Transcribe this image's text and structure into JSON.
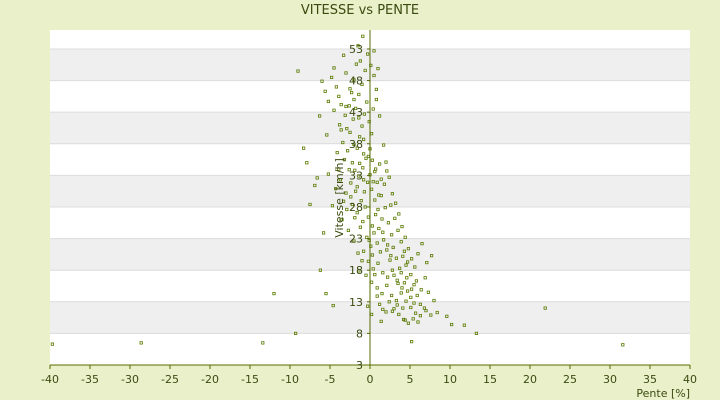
{
  "colors": {
    "page_background": "#eaf0c9",
    "band_white": "#ffffff",
    "band_gray": "#efefef",
    "axis": "#556b00",
    "point": "#5a7a00",
    "text": "#3a4a10"
  },
  "chart_data": {
    "type": "scatter",
    "title": "VITESSE vs PENTE",
    "xlabel": "Pente [%]",
    "ylabel": "Vitesse [km/h]",
    "xlim": [
      -40,
      40
    ],
    "ylim": [
      3,
      56
    ],
    "xticks": [
      "-40",
      "-35",
      "-30",
      "-25",
      "-20",
      "-15",
      "-10",
      "-5",
      "0",
      "5",
      "10",
      "15",
      "20",
      "25",
      "30",
      "35",
      "40"
    ],
    "yticks": [
      "3",
      "8",
      "13",
      "18",
      "23",
      "28",
      "33",
      "38",
      "43",
      "48",
      "53"
    ],
    "grid": "horizontal alternating bands",
    "legend": "none",
    "series": [
      {
        "name": "",
        "points": [
          [
            -39.7,
            6.3
          ],
          [
            -28.6,
            6.5
          ],
          [
            -13.4,
            6.5
          ],
          [
            -9.3,
            8.0
          ],
          [
            -12.0,
            14.3
          ],
          [
            31.6,
            6.2
          ],
          [
            21.9,
            12.0
          ],
          [
            13.3,
            8.0
          ],
          [
            5.2,
            6.7
          ],
          [
            4.4,
            10.1
          ],
          [
            -9.0,
            49.5
          ],
          [
            -8.3,
            37.3
          ],
          [
            -7.9,
            35.0
          ],
          [
            -6.3,
            42.4
          ],
          [
            -6.0,
            47.9
          ],
          [
            -5.6,
            46.3
          ],
          [
            -5.2,
            44.7
          ],
          [
            -5.4,
            39.4
          ],
          [
            -4.8,
            48.5
          ],
          [
            -4.5,
            50.0
          ],
          [
            -4.2,
            47.0
          ],
          [
            -4.5,
            43.3
          ],
          [
            -3.9,
            45.5
          ],
          [
            -3.6,
            44.2
          ],
          [
            -3.3,
            52.0
          ],
          [
            -3.0,
            49.2
          ],
          [
            -3.8,
            41.0
          ],
          [
            -3.1,
            42.5
          ],
          [
            -2.9,
            40.4
          ],
          [
            -2.6,
            44.0
          ],
          [
            -2.3,
            46.1
          ],
          [
            -2.0,
            48.1
          ],
          [
            -1.7,
            50.6
          ],
          [
            -1.5,
            53.5
          ],
          [
            -1.2,
            51.1
          ],
          [
            -0.9,
            55.0
          ],
          [
            -3.4,
            38.2
          ],
          [
            -2.8,
            36.9
          ],
          [
            -2.5,
            39.8
          ],
          [
            -2.1,
            41.9
          ],
          [
            -1.8,
            43.6
          ],
          [
            -1.4,
            45.8
          ],
          [
            -1.0,
            47.4
          ],
          [
            -0.6,
            49.6
          ],
          [
            -0.3,
            52.2
          ],
          [
            0.1,
            50.4
          ],
          [
            0.5,
            48.8
          ],
          [
            0.8,
            45.0
          ],
          [
            -2.2,
            35.0
          ],
          [
            -1.9,
            33.8
          ],
          [
            -1.6,
            37.3
          ],
          [
            -1.3,
            39.1
          ],
          [
            -1.0,
            40.8
          ],
          [
            -0.7,
            42.7
          ],
          [
            -0.4,
            44.6
          ],
          [
            -0.1,
            41.5
          ],
          [
            0.2,
            39.6
          ],
          [
            0.4,
            43.5
          ],
          [
            -5.2,
            33.2
          ],
          [
            -6.6,
            32.6
          ],
          [
            -7.5,
            28.4
          ],
          [
            -6.9,
            31.4
          ],
          [
            -4.3,
            30.9
          ],
          [
            -3.7,
            32.3
          ],
          [
            -3.0,
            30.2
          ],
          [
            -2.4,
            31.8
          ],
          [
            -1.8,
            30.5
          ],
          [
            -1.4,
            32.9
          ],
          [
            -0.9,
            34.2
          ],
          [
            -0.5,
            35.7
          ],
          [
            0.0,
            37.2
          ],
          [
            0.3,
            35.4
          ],
          [
            0.6,
            33.6
          ],
          [
            0.9,
            31.9
          ],
          [
            1.2,
            34.8
          ],
          [
            -2.2,
            28.4
          ],
          [
            -1.6,
            27.1
          ],
          [
            -1.1,
            29.0
          ],
          [
            -0.7,
            30.4
          ],
          [
            -0.3,
            31.9
          ],
          [
            0.2,
            30.8
          ],
          [
            0.6,
            29.1
          ],
          [
            1.0,
            27.6
          ],
          [
            1.4,
            29.8
          ],
          [
            1.8,
            31.6
          ],
          [
            -0.6,
            28.0
          ],
          [
            -0.2,
            26.4
          ],
          [
            0.3,
            25.0
          ],
          [
            0.7,
            26.8
          ],
          [
            1.1,
            24.6
          ],
          [
            1.5,
            26.1
          ],
          [
            1.9,
            27.9
          ],
          [
            2.3,
            25.5
          ],
          [
            2.7,
            23.6
          ],
          [
            -1.2,
            24.8
          ],
          [
            -0.4,
            23.2
          ],
          [
            0.1,
            21.8
          ],
          [
            0.5,
            23.9
          ],
          [
            0.9,
            22.3
          ],
          [
            1.3,
            20.9
          ],
          [
            1.7,
            22.8
          ],
          [
            2.1,
            21.2
          ],
          [
            2.5,
            19.6
          ],
          [
            2.9,
            21.6
          ],
          [
            3.3,
            19.9
          ],
          [
            3.7,
            18.3
          ],
          [
            4.1,
            20.2
          ],
          [
            4.5,
            18.8
          ],
          [
            -0.8,
            21.0
          ],
          [
            -0.2,
            19.4
          ],
          [
            0.4,
            18.2
          ],
          [
            1.0,
            19.1
          ],
          [
            1.6,
            17.6
          ],
          [
            2.2,
            16.9
          ],
          [
            2.8,
            18.0
          ],
          [
            3.4,
            16.4
          ],
          [
            4.0,
            15.2
          ],
          [
            4.6,
            16.8
          ],
          [
            5.2,
            15.0
          ],
          [
            5.8,
            16.3
          ],
          [
            6.4,
            14.9
          ],
          [
            -0.5,
            17.2
          ],
          [
            0.2,
            16.1
          ],
          [
            0.9,
            15.2
          ],
          [
            1.5,
            14.3
          ],
          [
            2.1,
            15.6
          ],
          [
            2.7,
            14.0
          ],
          [
            3.3,
            13.2
          ],
          [
            3.9,
            14.4
          ],
          [
            4.5,
            13.1
          ],
          [
            5.1,
            12.1
          ],
          [
            5.7,
            11.2
          ],
          [
            6.3,
            10.8
          ],
          [
            7.0,
            11.6
          ],
          [
            7.6,
            10.9
          ],
          [
            8.4,
            11.3
          ],
          [
            9.6,
            10.7
          ],
          [
            10.2,
            9.4
          ],
          [
            11.8,
            9.3
          ],
          [
            2.4,
            13.0
          ],
          [
            3.0,
            11.9
          ],
          [
            3.6,
            11.0
          ],
          [
            4.2,
            10.2
          ],
          [
            4.8,
            9.6
          ],
          [
            5.4,
            10.3
          ],
          [
            6.0,
            9.8
          ],
          [
            -0.3,
            12.3
          ],
          [
            0.2,
            11.0
          ],
          [
            -1.0,
            19.5
          ],
          [
            -1.4,
            17.9
          ],
          [
            -5.5,
            14.3
          ],
          [
            -4.6,
            12.4
          ],
          [
            -6.2,
            18.0
          ],
          [
            -5.8,
            23.9
          ],
          [
            -4.7,
            28.2
          ],
          [
            -3.5,
            26.0
          ],
          [
            -2.7,
            24.3
          ],
          [
            -2.0,
            22.6
          ],
          [
            -1.5,
            20.7
          ],
          [
            -0.9,
            25.7
          ],
          [
            1.7,
            37.8
          ],
          [
            2.0,
            35.1
          ],
          [
            2.4,
            32.7
          ],
          [
            2.8,
            30.1
          ],
          [
            3.2,
            28.6
          ],
          [
            3.6,
            26.9
          ],
          [
            4.0,
            24.9
          ],
          [
            4.4,
            23.2
          ],
          [
            4.8,
            21.4
          ],
          [
            5.2,
            19.8
          ],
          [
            5.6,
            18.5
          ],
          [
            6.0,
            20.6
          ],
          [
            6.5,
            22.2
          ],
          [
            7.1,
            19.2
          ],
          [
            7.7,
            20.3
          ],
          [
            6.9,
            16.8
          ],
          [
            7.3,
            14.5
          ],
          [
            8.0,
            13.2
          ],
          [
            1.2,
            42.4
          ],
          [
            0.8,
            46.6
          ],
          [
            0.5,
            52.7
          ],
          [
            1.0,
            49.9
          ],
          [
            -0.8,
            36.4
          ],
          [
            -1.3,
            34.9
          ],
          [
            -2.6,
            33.9
          ],
          [
            -3.2,
            35.5
          ],
          [
            -2.0,
            37.9
          ],
          [
            -1.6,
            31.2
          ],
          [
            -0.8,
            32.3
          ],
          [
            0.0,
            33.1
          ],
          [
            0.7,
            34.0
          ],
          [
            1.4,
            32.4
          ],
          [
            2.1,
            33.7
          ],
          [
            2.6,
            28.3
          ],
          [
            3.1,
            26.2
          ],
          [
            3.5,
            24.3
          ],
          [
            3.9,
            22.5
          ],
          [
            4.3,
            21.0
          ],
          [
            4.7,
            19.3
          ],
          [
            5.1,
            17.3
          ],
          [
            5.5,
            15.7
          ],
          [
            5.9,
            14.0
          ],
          [
            6.3,
            12.6
          ],
          [
            6.8,
            12.0
          ],
          [
            -0.1,
            22.7
          ],
          [
            0.3,
            20.4
          ],
          [
            0.6,
            17.3
          ],
          [
            0.9,
            13.9
          ],
          [
            1.2,
            12.6
          ],
          [
            1.6,
            11.8
          ],
          [
            -1.9,
            26.3
          ],
          [
            -2.4,
            29.6
          ],
          [
            -2.9,
            27.6
          ],
          [
            -3.3,
            28.9
          ],
          [
            -3.9,
            34.0
          ],
          [
            -4.1,
            36.6
          ],
          [
            -3.6,
            40.2
          ],
          [
            -3.0,
            43.9
          ],
          [
            -2.5,
            46.7
          ],
          [
            -2.0,
            45.0
          ],
          [
            -1.4,
            42.1
          ],
          [
            -0.8,
            38.7
          ],
          [
            -0.2,
            36.0
          ],
          [
            0.4,
            32.0
          ],
          [
            1.1,
            29.9
          ],
          [
            1.6,
            24.0
          ],
          [
            2.2,
            22.0
          ],
          [
            2.6,
            20.3
          ],
          [
            3.0,
            17.2
          ],
          [
            3.5,
            15.9
          ],
          [
            3.9,
            17.6
          ],
          [
            4.3,
            16.0
          ],
          [
            4.7,
            14.7
          ],
          [
            5.1,
            13.7
          ],
          [
            5.5,
            12.8
          ],
          [
            4.1,
            12.0
          ],
          [
            3.4,
            12.5
          ],
          [
            2.8,
            11.5
          ],
          [
            2.0,
            11.4
          ],
          [
            1.4,
            9.9
          ]
        ]
      }
    ]
  }
}
